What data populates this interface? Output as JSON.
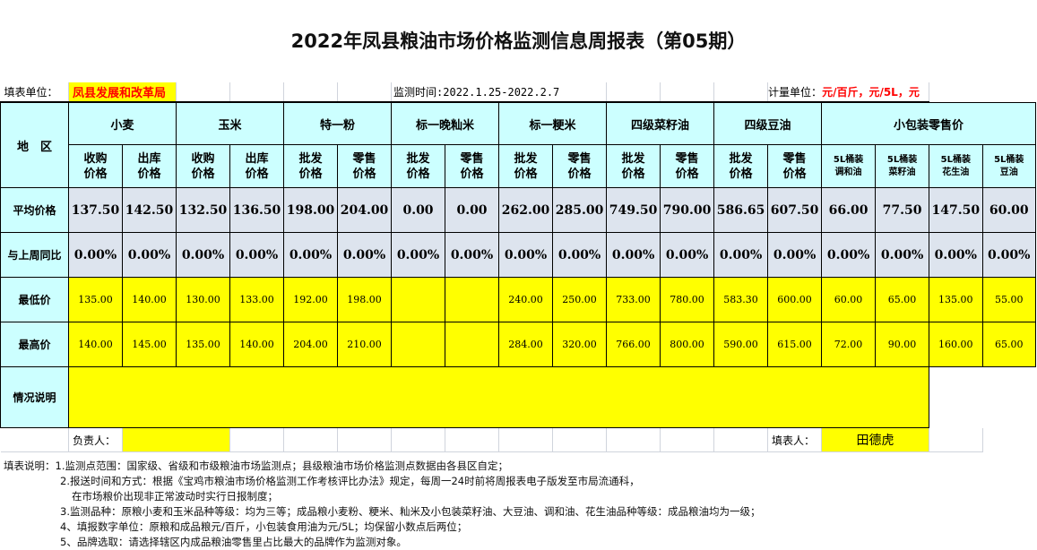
{
  "title": "2022年凤县粮油市场价格监测信息周报表（第05期）",
  "info": {
    "unit_label": "填表单位：",
    "unit_value": "凤县发展和改革局",
    "period": "监测时间:2022.1.25-2022.2.7",
    "measure_label": "计量单位：",
    "measure_value": "元/百斤，元/5L，元"
  },
  "region_label": "地　区",
  "groups": [
    {
      "name": "小麦",
      "span": 2
    },
    {
      "name": "玉米",
      "span": 2
    },
    {
      "name": "特一粉",
      "span": 2
    },
    {
      "name": "标一晚籼米",
      "span": 2
    },
    {
      "name": "标一粳米",
      "span": 2
    },
    {
      "name": "四级菜籽油",
      "span": 2
    },
    {
      "name": "四级豆油",
      "span": 2
    },
    {
      "name": "小包装零售价",
      "span": 4
    }
  ],
  "subheaders": [
    [
      "收购",
      "价格"
    ],
    [
      "出库",
      "价格"
    ],
    [
      "收购",
      "价格"
    ],
    [
      "出库",
      "价格"
    ],
    [
      "批发",
      "价格"
    ],
    [
      "零售",
      "价格"
    ],
    [
      "批发",
      "价格"
    ],
    [
      "零售",
      "价格"
    ],
    [
      "批发",
      "价格"
    ],
    [
      "零售",
      "价格"
    ],
    [
      "批发",
      "价格"
    ],
    [
      "零售",
      "价格"
    ],
    [
      "批发",
      "价格"
    ],
    [
      "零售",
      "价格"
    ],
    [
      "5L桶装",
      "调和油"
    ],
    [
      "5L桶装",
      "菜籽油"
    ],
    [
      "5L桶装",
      "花生油"
    ],
    [
      "5L桶装",
      "豆油"
    ]
  ],
  "rows": [
    {
      "label": "平均价格",
      "type": "avg",
      "values": [
        "137.50",
        "142.50",
        "132.50",
        "136.50",
        "198.00",
        "204.00",
        "0.00",
        "0.00",
        "262.00",
        "285.00",
        "749.50",
        "790.00",
        "586.65",
        "607.50",
        "66.00",
        "77.50",
        "147.50",
        "60.00"
      ]
    },
    {
      "label": "与上周同比",
      "type": "avg",
      "values": [
        "0.00%",
        "0.00%",
        "0.00%",
        "0.00%",
        "0.00%",
        "0.00%",
        "0.00%",
        "0.00%",
        "0.00%",
        "0.00%",
        "0.00%",
        "0.00%",
        "0.00%",
        "0.00%",
        "0.00%",
        "0.00%",
        "0.00%",
        "0.00%"
      ]
    },
    {
      "label": "最低价",
      "type": "yel",
      "values": [
        "135.00",
        "140.00",
        "130.00",
        "133.00",
        "192.00",
        "198.00",
        "",
        "",
        "240.00",
        "250.00",
        "733.00",
        "780.00",
        "583.30",
        "600.00",
        "60.00",
        "65.00",
        "135.00",
        "55.00"
      ]
    },
    {
      "label": "最高价",
      "type": "yel",
      "values": [
        "140.00",
        "145.00",
        "135.00",
        "140.00",
        "204.00",
        "210.00",
        "",
        "",
        "284.00",
        "320.00",
        "766.00",
        "800.00",
        "590.00",
        "615.00",
        "72.00",
        "90.00",
        "160.00",
        "65.00"
      ]
    }
  ],
  "situation_label": "情况说明",
  "sign": {
    "responsible_label": "负责人：",
    "filler_label": "填表人：",
    "filler_value": "田德虎"
  },
  "notes": [
    "填表说明：1.监测点范围：国家级、省级和市级粮油市场监测点；县级粮油市场价格监测点数据由各县区自定；",
    "2.报送时间和方式：根据《宝鸡市粮油市场价格监测工作考核评比办法》规定，每周一24时前将周报表电子版发至市局流通科，",
    "在市场粮价出现非正常波动时实行日报制度；",
    "3.监测品种：原粮小麦和玉米品种等级：均为三等；成品粮小麦粉、粳米、籼米及小包装菜籽油、大豆油、调和油、花生油品种等级：成品粮油均为一级；",
    "4、填报数字单位：原粮和成品粮元/百斤，小包装食用油为元/5L；均保留小数点后两位；",
    "5、品牌选取：请选择辖区内成品粮油零售里占比最大的品牌作为监测对象。"
  ],
  "colors": {
    "header": "#ccffff",
    "avg_row": "#dde4ee",
    "input": "#ffff00",
    "accent": "#ff0000"
  }
}
